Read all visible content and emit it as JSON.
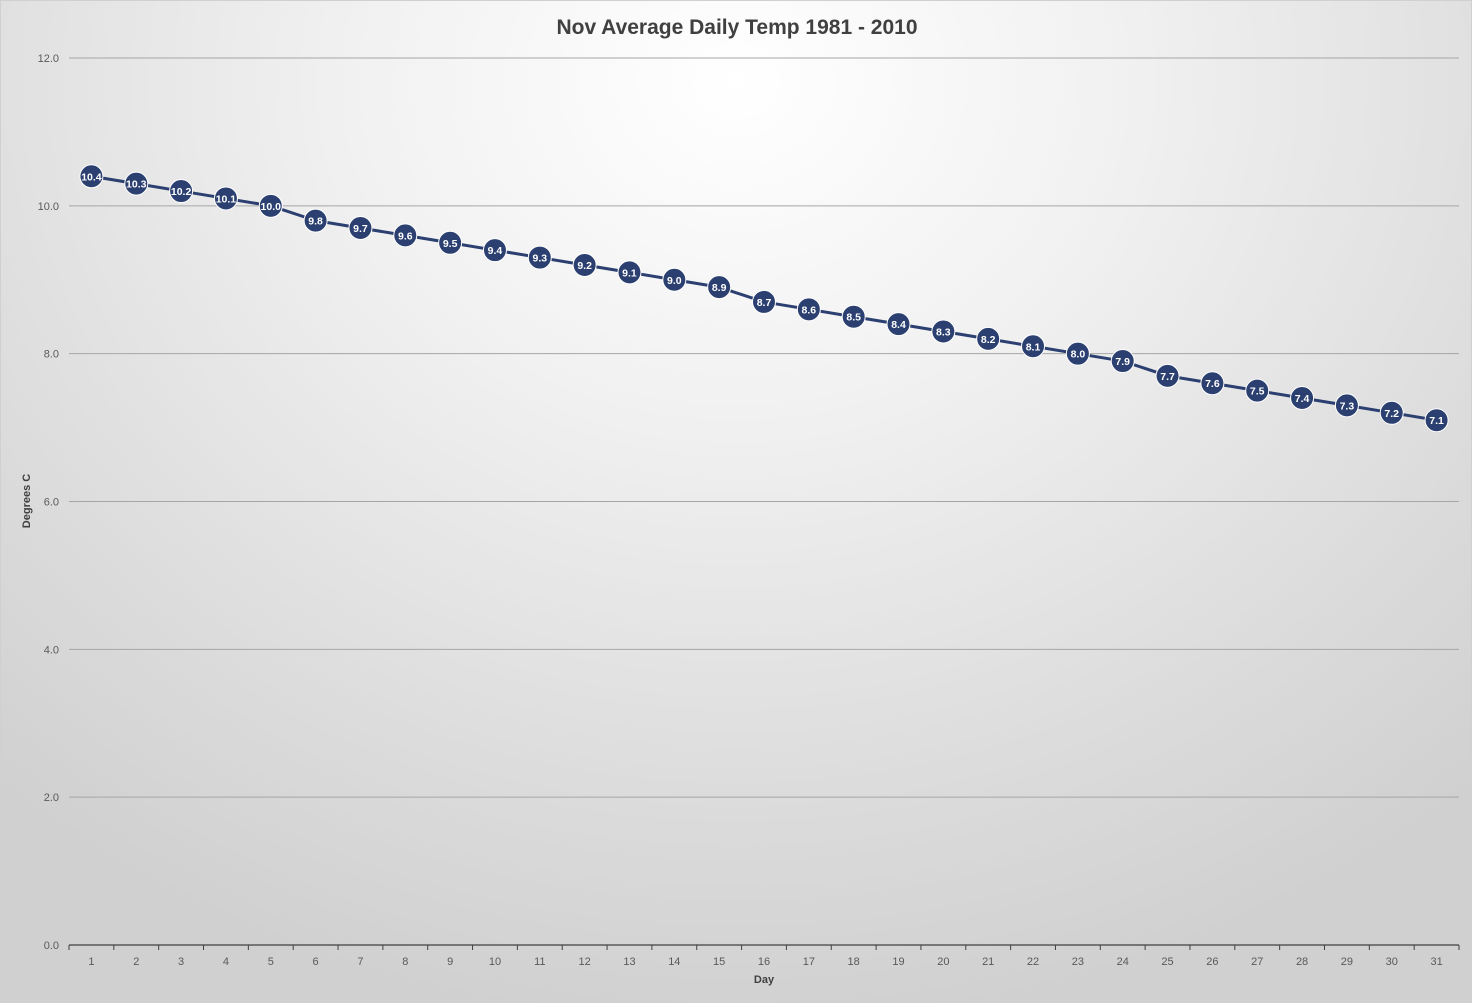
{
  "chart_data": {
    "type": "line",
    "title": "Nov Average Daily Temp 1981 - 2010",
    "xlabel": "Day",
    "ylabel": "Degrees C",
    "categories": [
      "1",
      "2",
      "3",
      "4",
      "5",
      "6",
      "7",
      "8",
      "9",
      "10",
      "11",
      "12",
      "13",
      "14",
      "15",
      "16",
      "17",
      "18",
      "19",
      "20",
      "21",
      "22",
      "23",
      "24",
      "25",
      "26",
      "27",
      "28",
      "29",
      "30",
      "31"
    ],
    "series": [
      {
        "values": [
          10.4,
          10.3,
          10.2,
          10.1,
          10.0,
          9.8,
          9.7,
          9.6,
          9.5,
          9.4,
          9.3,
          9.2,
          9.1,
          9.0,
          8.9,
          8.7,
          8.6,
          8.5,
          8.4,
          8.3,
          8.2,
          8.1,
          8.0,
          7.9,
          7.7,
          7.6,
          7.5,
          7.4,
          7.3,
          7.2,
          7.1
        ],
        "labels": [
          "10.4",
          "10.3",
          "10.2",
          "10.1",
          "10.0",
          "9.8",
          "9.7",
          "9.6",
          "9.5",
          "9.4",
          "9.3",
          "9.2",
          "9.1",
          "9.0",
          "8.9",
          "8.7",
          "8.6",
          "8.5",
          "8.4",
          "8.3",
          "8.2",
          "8.1",
          "8.0",
          "7.9",
          "7.7",
          "7.6",
          "7.5",
          "7.4",
          "7.3",
          "7.2",
          "7.1"
        ],
        "color": "#2b4070"
      }
    ],
    "ylim": [
      0,
      12
    ],
    "yticks": [
      "0.0",
      "2.0",
      "4.0",
      "6.0",
      "8.0",
      "10.0",
      "12.0"
    ],
    "ytick_values": [
      0,
      2,
      4,
      6,
      8,
      10,
      12
    ],
    "grid": true,
    "legend": "none",
    "gridline_color": "#a6a6a6",
    "axis_color": "#404040"
  }
}
